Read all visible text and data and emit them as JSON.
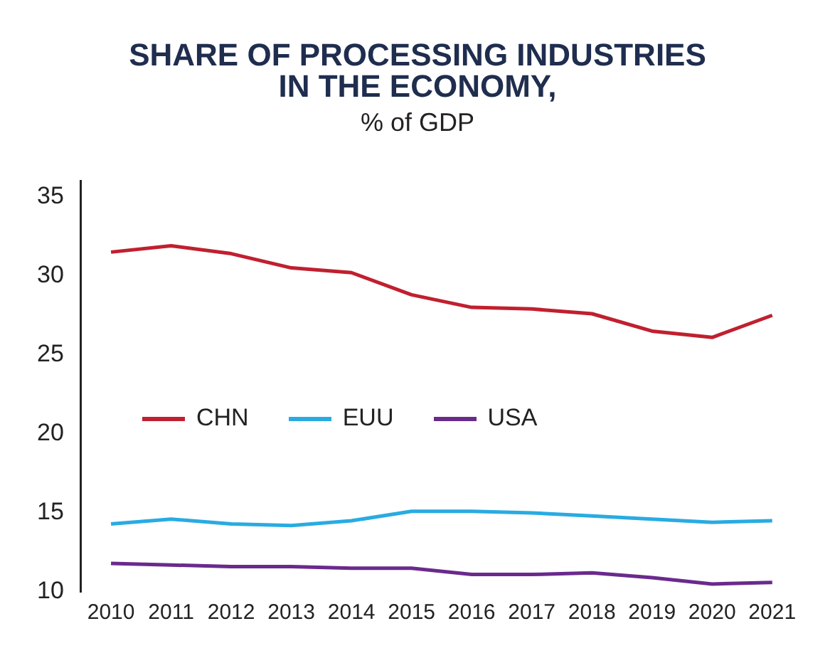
{
  "chart_data": {
    "type": "line",
    "title": "SHARE OF PROCESSING INDUSTRIES IN THE ECONOMY,",
    "subtitle": "% of GDP",
    "categories": [
      "2010",
      "2011",
      "2012",
      "2013",
      "2014",
      "2015",
      "2016",
      "2017",
      "2018",
      "2019",
      "2020",
      "2021"
    ],
    "series": [
      {
        "name": "CHN",
        "color": "#c0202f",
        "values": [
          31.5,
          31.9,
          31.4,
          30.5,
          30.2,
          28.8,
          28.0,
          27.9,
          27.6,
          26.5,
          26.1,
          27.5
        ]
      },
      {
        "name": "EUU",
        "color": "#29abe2",
        "values": [
          14.3,
          14.6,
          14.3,
          14.2,
          14.5,
          15.1,
          15.1,
          15.0,
          14.8,
          14.6,
          14.4,
          14.5
        ]
      },
      {
        "name": "USA",
        "color": "#6a2a8c",
        "values": [
          11.8,
          11.7,
          11.6,
          11.6,
          11.5,
          11.5,
          11.1,
          11.1,
          11.2,
          10.9,
          10.5,
          10.6
        ]
      }
    ],
    "ylim": [
      10,
      36
    ],
    "yticks": [
      10,
      15,
      20,
      25,
      30,
      35
    ],
    "grid": false,
    "legend": "left",
    "marker": "none",
    "line_style": "solid"
  }
}
